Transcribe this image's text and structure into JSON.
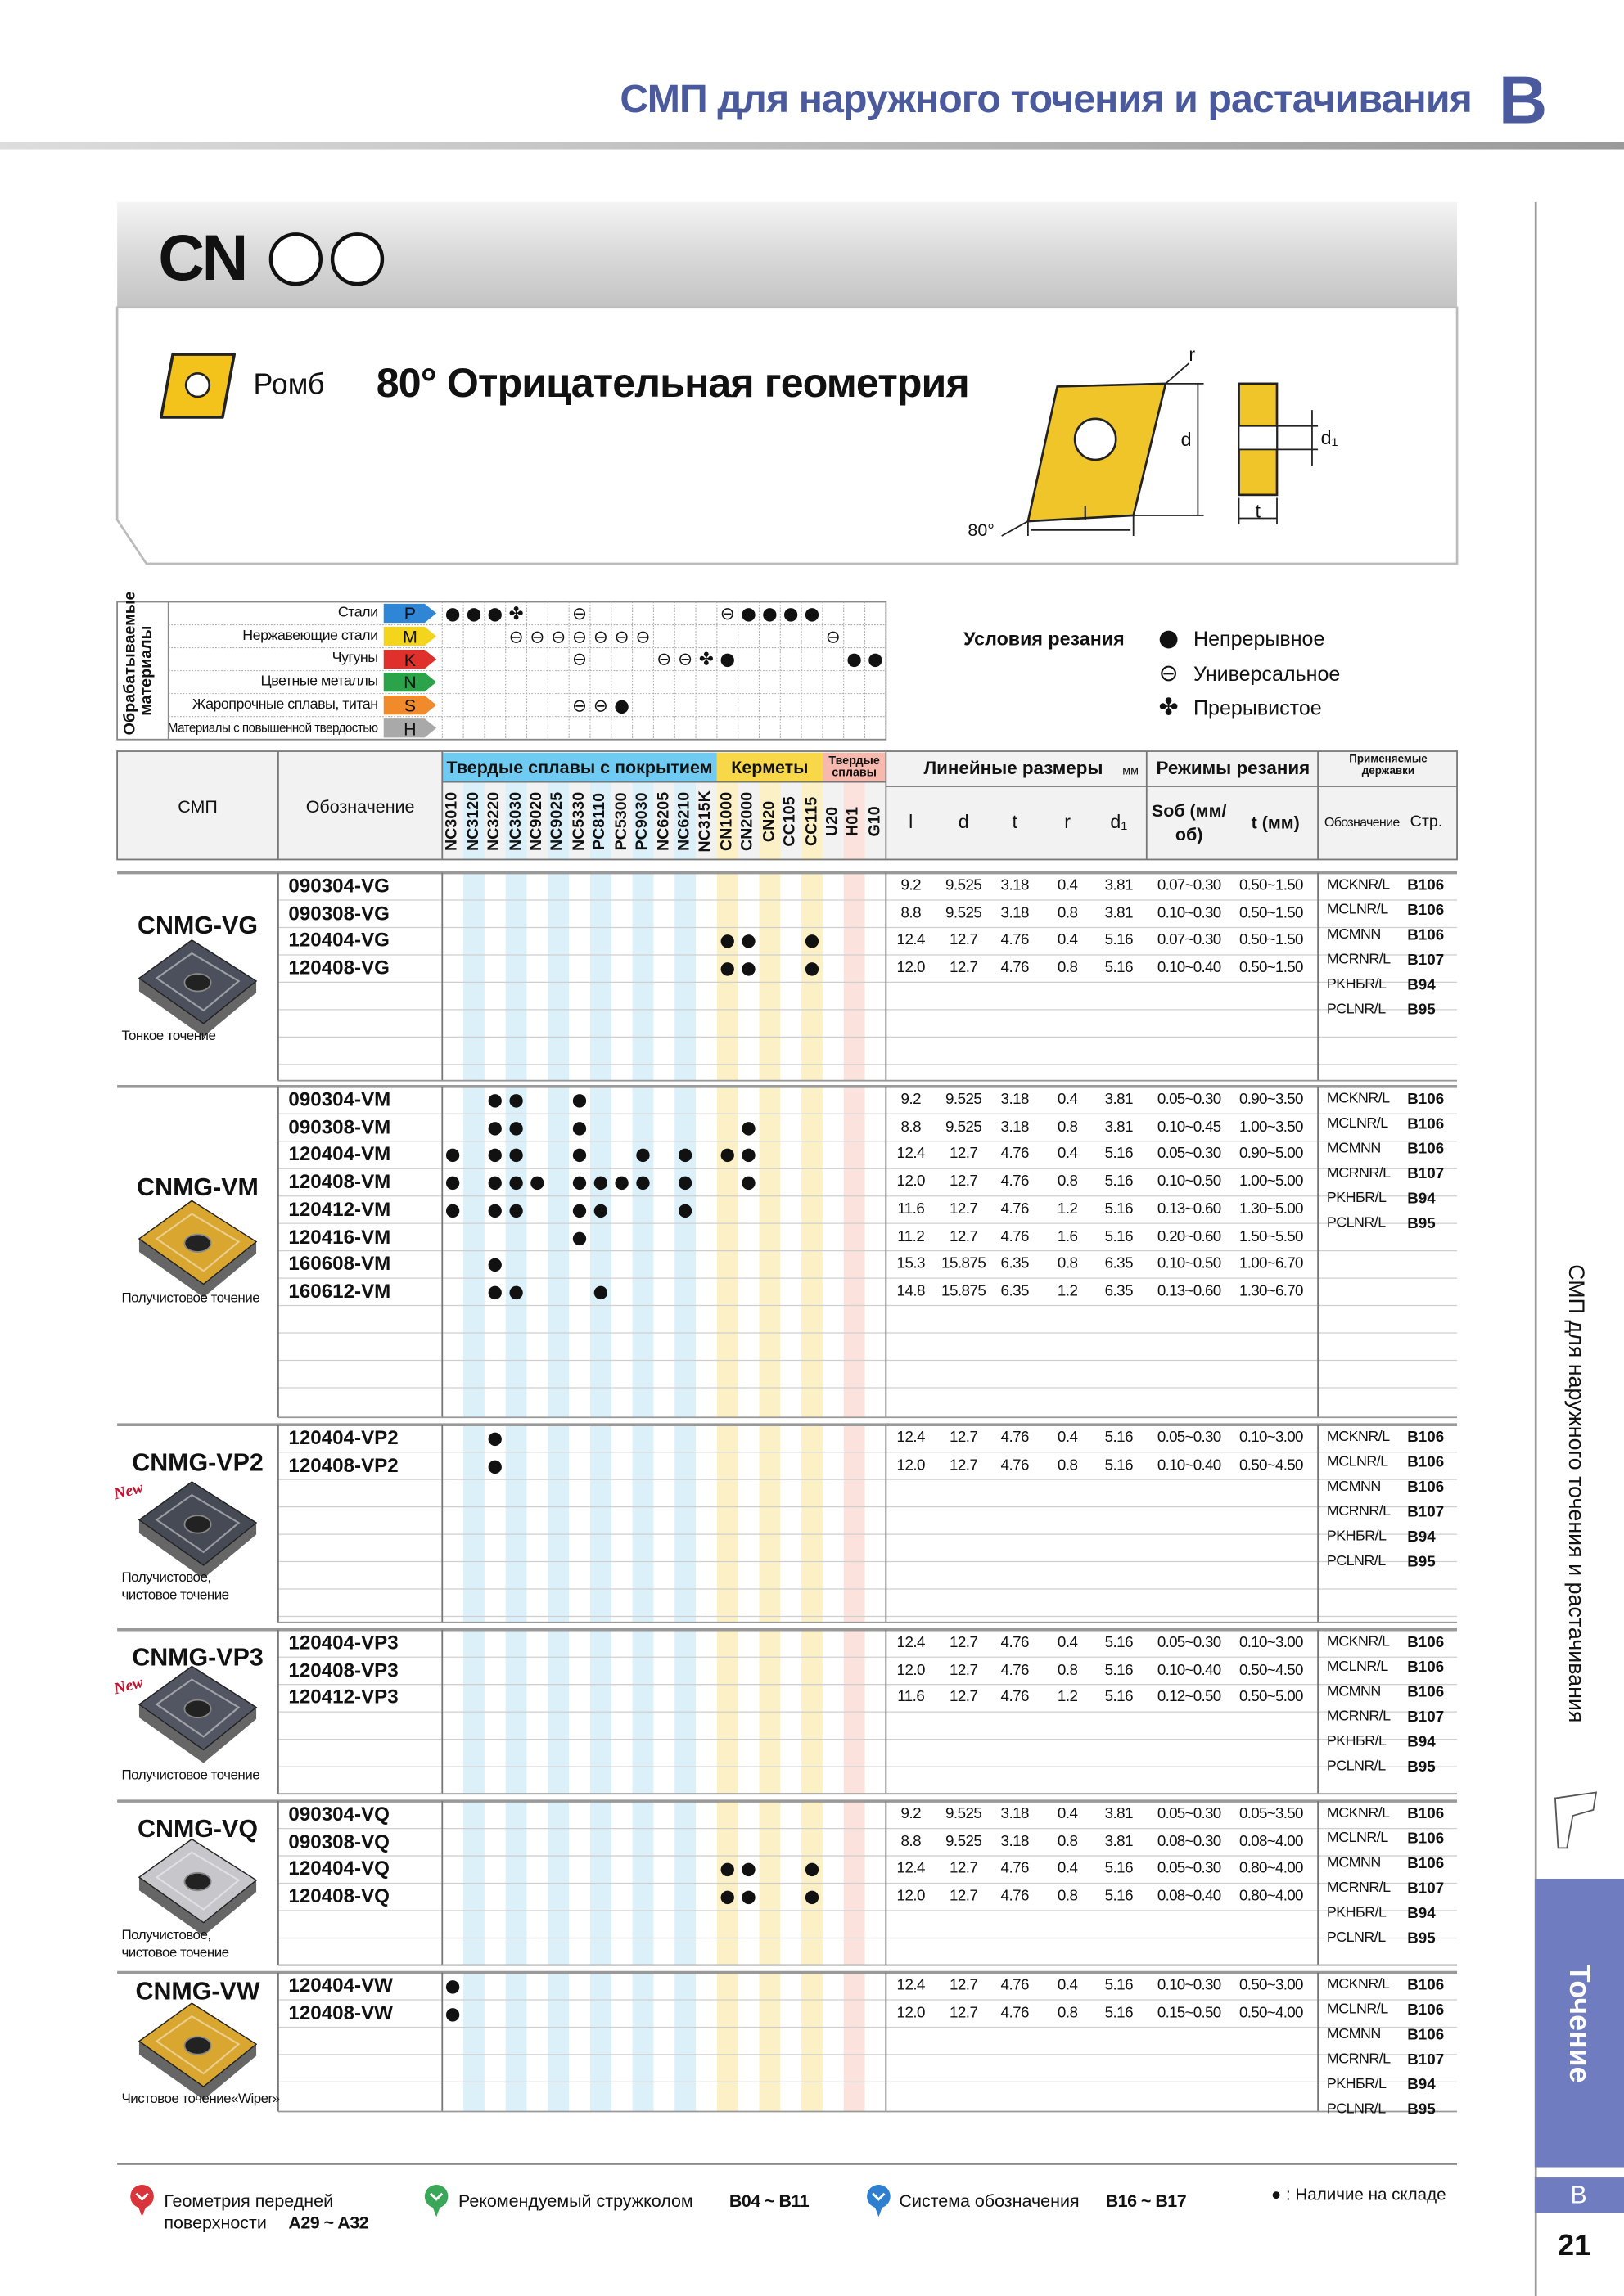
{
  "header": {
    "title": "СМП для наружного точения и растачивания",
    "letter": "B"
  },
  "series": {
    "code": "CN",
    "shape": "Ромб",
    "geometry": "80° Отрицательная геометрия"
  },
  "diagram": {
    "r": "r",
    "d": "d",
    "d1": "d₁",
    "l": "l",
    "t": "t",
    "angle": "80°"
  },
  "materials": {
    "title": "Обрабатываемые материалы",
    "rows": [
      {
        "name": "Стали",
        "letter": "P",
        "color": "#2f86d6",
        "marks": {
          "NC3010": "●",
          "NC3120": "●",
          "NC3220": "●",
          "NC3030": "✤",
          "NC5330": "⊖",
          "CN1000": "⊖",
          "CN2000": "●",
          "CN20": "●",
          "CC105": "●",
          "CC115": "●"
        }
      },
      {
        "name": "Нержавеющие стали",
        "letter": "M",
        "color": "#f2d51c",
        "marks": {
          "NC3030": "⊖",
          "NC9020": "⊖",
          "NC9025": "⊖",
          "NC5330": "⊖",
          "PC8110": "⊖",
          "PC5300": "⊖",
          "PC9030": "⊖",
          "U20": "⊖"
        }
      },
      {
        "name": "Чугуны",
        "letter": "K",
        "color": "#e0302c",
        "marks": {
          "NC5330": "⊖",
          "NC6205": "⊖",
          "NC6210": "⊖",
          "NC315K": "✤",
          "CN1000": "●",
          "H01": "●",
          "G10": "●"
        }
      },
      {
        "name": "Цветные металлы",
        "letter": "N",
        "color": "#2ba34a"
      },
      {
        "name": "Жаропрочные сплавы, титан",
        "letter": "S",
        "color": "#f08a2a",
        "marks": {
          "NC5330": "⊖",
          "PC8110": "⊖",
          "PC5300": "●"
        }
      },
      {
        "name": "Материалы с повышенной твердостью",
        "letter": "H",
        "color": "#a9a9a9"
      }
    ]
  },
  "conditions": {
    "title": "Условия резания",
    "items": [
      {
        "symbol": "●",
        "label": "Непрерывное"
      },
      {
        "symbol": "⊖",
        "label": "Универсальное"
      },
      {
        "symbol": "✤",
        "label": "Прерывистое"
      }
    ]
  },
  "table": {
    "insert_header": "СМП",
    "code_header": "Обозначение",
    "grade_groups": [
      {
        "name": "Твердые сплавы с покрытием",
        "color": "#6fcbf1",
        "stripe_color": "#dcf0fa",
        "grades": [
          "NC3010",
          "NC3120",
          "NC3220",
          "NC3030",
          "NC9020",
          "NC9025",
          "NC5330",
          "PC8110",
          "PC5300",
          "PC9030",
          "NC6205",
          "NC6210",
          "NC315K"
        ]
      },
      {
        "name": "Керметы",
        "color": "#f8d848",
        "stripe_color": "#fcf1c6",
        "grades": [
          "CN1000",
          "CN2000",
          "CN20",
          "CC105",
          "CC115"
        ]
      },
      {
        "name": "Твердые сплавы",
        "color": "#f7b9ad",
        "stripe_color": "#fbe2dc",
        "grades": [
          "U20",
          "H01",
          "G10"
        ]
      }
    ],
    "dims_header": "Линейные размеры",
    "dims_unit": "мм",
    "dims": [
      "l",
      "d",
      "t",
      "r",
      "d₁"
    ],
    "cutting_header": "Режимы резания",
    "feed_header": "Sоб (мм/об)",
    "depth_header": "t (мм)",
    "holders_header": "Применяемые державки",
    "holder_name_header": "Обозначение",
    "holder_page_header": "Стр."
  },
  "groups": [
    {
      "name": "CNMG-VG",
      "description": [
        "Тонкое точение"
      ],
      "rows": [
        {
          "code": "090304-VG",
          "dims": [
            "9.2",
            "9.525",
            "3.18",
            "0.4",
            "3.81"
          ],
          "feed": "0.07~0.30",
          "depth": "0.50~1.50"
        },
        {
          "code": "090308-VG",
          "dims": [
            "8.8",
            "9.525",
            "3.18",
            "0.8",
            "3.81"
          ],
          "feed": "0.10~0.30",
          "depth": "0.50~1.50"
        },
        {
          "code": "120404-VG",
          "marks": {
            "CN1000": "●",
            "CN2000": "●",
            "CC115": "●"
          },
          "dims": [
            "12.4",
            "12.7",
            "4.76",
            "0.4",
            "5.16"
          ],
          "feed": "0.07~0.30",
          "depth": "0.50~1.50"
        },
        {
          "code": "120408-VG",
          "marks": {
            "CN1000": "●",
            "CN2000": "●",
            "CC115": "●"
          },
          "dims": [
            "12.0",
            "12.7",
            "4.76",
            "0.8",
            "5.16"
          ],
          "feed": "0.10~0.40",
          "depth": "0.50~1.50"
        }
      ],
      "holders": [
        [
          "MCKNR/L",
          "B106"
        ],
        [
          "MCLNR/L",
          "B106"
        ],
        [
          "MCMNN",
          "B106"
        ],
        [
          "MCRNR/L",
          "B107"
        ],
        [
          "PKHБR/L",
          "B94"
        ],
        [
          "PCLNR/L",
          "B95"
        ]
      ]
    },
    {
      "name": "CNMG-VM",
      "description": [
        "Получистовое точение"
      ],
      "rows": [
        {
          "code": "090304-VM",
          "marks": {
            "NC3220": "●",
            "NC3030": "●",
            "NC5330": "●"
          },
          "dims": [
            "9.2",
            "9.525",
            "3.18",
            "0.4",
            "3.81"
          ],
          "feed": "0.05~0.30",
          "depth": "0.90~3.50"
        },
        {
          "code": "090308-VM",
          "marks": {
            "NC3220": "●",
            "NC3030": "●",
            "NC5330": "●",
            "CN2000": "●"
          },
          "dims": [
            "8.8",
            "9.525",
            "3.18",
            "0.8",
            "3.81"
          ],
          "feed": "0.10~0.45",
          "depth": "1.00~3.50"
        },
        {
          "code": "120404-VM",
          "marks": {
            "NC3010": "●",
            "NC3220": "●",
            "NC3030": "●",
            "NC5330": "●",
            "PC9030": "●",
            "NC6210": "●",
            "CN1000": "●",
            "CN2000": "●"
          },
          "dims": [
            "12.4",
            "12.7",
            "4.76",
            "0.4",
            "5.16"
          ],
          "feed": "0.05~0.30",
          "depth": "0.90~5.00"
        },
        {
          "code": "120408-VM",
          "marks": {
            "NC3010": "●",
            "NC3220": "●",
            "NC3030": "●",
            "NC9020": "●",
            "NC5330": "●",
            "PC8110": "●",
            "PC5300": "●",
            "PC9030": "●",
            "NC6210": "●",
            "CN2000": "●"
          },
          "dims": [
            "12.0",
            "12.7",
            "4.76",
            "0.8",
            "5.16"
          ],
          "feed": "0.10~0.50",
          "depth": "1.00~5.00"
        },
        {
          "code": "120412-VM",
          "marks": {
            "NC3010": "●",
            "NC3220": "●",
            "NC3030": "●",
            "NC5330": "●",
            "PC8110": "●",
            "NC6210": "●"
          },
          "dims": [
            "11.6",
            "12.7",
            "4.76",
            "1.2",
            "5.16"
          ],
          "feed": "0.13~0.60",
          "depth": "1.30~5.00"
        },
        {
          "code": "120416-VM",
          "marks": {
            "NC5330": "●"
          },
          "dims": [
            "11.2",
            "12.7",
            "4.76",
            "1.6",
            "5.16"
          ],
          "feed": "0.20~0.60",
          "depth": "1.50~5.50"
        },
        {
          "code": "160608-VM",
          "marks": {
            "NC3220": "●"
          },
          "dims": [
            "15.3",
            "15.875",
            "6.35",
            "0.8",
            "6.35"
          ],
          "feed": "0.10~0.50",
          "depth": "1.00~6.70"
        },
        {
          "code": "160612-VM",
          "marks": {
            "NC3220": "●",
            "NC3030": "●",
            "PC8110": "●"
          },
          "dims": [
            "14.8",
            "15.875",
            "6.35",
            "1.2",
            "6.35"
          ],
          "feed": "0.13~0.60",
          "depth": "1.30~6.70"
        }
      ],
      "holders": [
        [
          "MCKNR/L",
          "B106"
        ],
        [
          "MCLNR/L",
          "B106"
        ],
        [
          "MCMNN",
          "B106"
        ],
        [
          "MCRNR/L",
          "B107"
        ],
        [
          "PKHБR/L",
          "B94"
        ],
        [
          "PCLNR/L",
          "B95"
        ]
      ]
    },
    {
      "name": "CNMG-VP2",
      "badge": "New",
      "description": [
        "Получистовое,",
        "чистовое точение"
      ],
      "rows": [
        {
          "code": "120404-VP2",
          "marks": {
            "NC3220": "●"
          },
          "dims": [
            "12.4",
            "12.7",
            "4.76",
            "0.4",
            "5.16"
          ],
          "feed": "0.05~0.30",
          "depth": "0.10~3.00"
        },
        {
          "code": "120408-VP2",
          "marks": {
            "NC3220": "●"
          },
          "dims": [
            "12.0",
            "12.7",
            "4.76",
            "0.8",
            "5.16"
          ],
          "feed": "0.10~0.40",
          "depth": "0.50~4.50"
        }
      ],
      "holders": [
        [
          "MCKNR/L",
          "B106"
        ],
        [
          "MCLNR/L",
          "B106"
        ],
        [
          "MCMNN",
          "B106"
        ],
        [
          "MCRNR/L",
          "B107"
        ],
        [
          "PKHБR/L",
          "B94"
        ],
        [
          "PCLNR/L",
          "B95"
        ]
      ]
    },
    {
      "name": "CNMG-VP3",
      "badge": "New",
      "description": [
        "Получистовое точение"
      ],
      "rows": [
        {
          "code": "120404-VP3",
          "dims": [
            "12.4",
            "12.7",
            "4.76",
            "0.4",
            "5.16"
          ],
          "feed": "0.05~0.30",
          "depth": "0.10~3.00"
        },
        {
          "code": "120408-VP3",
          "dims": [
            "12.0",
            "12.7",
            "4.76",
            "0.8",
            "5.16"
          ],
          "feed": "0.10~0.40",
          "depth": "0.50~4.50"
        },
        {
          "code": "120412-VP3",
          "dims": [
            "11.6",
            "12.7",
            "4.76",
            "1.2",
            "5.16"
          ],
          "feed": "0.12~0.50",
          "depth": "0.50~5.00"
        }
      ],
      "holders": [
        [
          "MCKNR/L",
          "B106"
        ],
        [
          "MCLNR/L",
          "B106"
        ],
        [
          "MCMNN",
          "B106"
        ],
        [
          "MCRNR/L",
          "B107"
        ],
        [
          "PKHБR/L",
          "B94"
        ],
        [
          "PCLNR/L",
          "B95"
        ]
      ]
    },
    {
      "name": "CNMG-VQ",
      "description": [
        "Получистовое,",
        "чистовое точение"
      ],
      "rows": [
        {
          "code": "090304-VQ",
          "dims": [
            "9.2",
            "9.525",
            "3.18",
            "0.4",
            "3.81"
          ],
          "feed": "0.05~0.30",
          "depth": "0.05~3.50"
        },
        {
          "code": "090308-VQ",
          "dims": [
            "8.8",
            "9.525",
            "3.18",
            "0.8",
            "3.81"
          ],
          "feed": "0.08~0.30",
          "depth": "0.08~4.00"
        },
        {
          "code": "120404-VQ",
          "marks": {
            "CN1000": "●",
            "CN2000": "●",
            "CC115": "●"
          },
          "dims": [
            "12.4",
            "12.7",
            "4.76",
            "0.4",
            "5.16"
          ],
          "feed": "0.05~0.30",
          "depth": "0.80~4.00"
        },
        {
          "code": "120408-VQ",
          "marks": {
            "CN1000": "●",
            "CN2000": "●",
            "CC115": "●"
          },
          "dims": [
            "12.0",
            "12.7",
            "4.76",
            "0.8",
            "5.16"
          ],
          "feed": "0.08~0.40",
          "depth": "0.80~4.00"
        }
      ],
      "holders": [
        [
          "MCKNR/L",
          "B106"
        ],
        [
          "MCLNR/L",
          "B106"
        ],
        [
          "MCMNN",
          "B106"
        ],
        [
          "MCRNR/L",
          "B107"
        ],
        [
          "PKHБR/L",
          "B94"
        ],
        [
          "PCLNR/L",
          "B95"
        ]
      ]
    },
    {
      "name": "CNMG-VW",
      "description": [
        "Чистовое точение«Wiper»"
      ],
      "rows": [
        {
          "code": "120404-VW",
          "marks": {
            "NC3010": "●"
          },
          "dims": [
            "12.4",
            "12.7",
            "4.76",
            "0.4",
            "5.16"
          ],
          "feed": "0.10~0.30",
          "depth": "0.50~3.00"
        },
        {
          "code": "120408-VW",
          "marks": {
            "NC3010": "●"
          },
          "dims": [
            "12.0",
            "12.7",
            "4.76",
            "0.8",
            "5.16"
          ],
          "feed": "0.15~0.50",
          "depth": "0.50~4.00"
        }
      ],
      "holders": [
        [
          "MCKNR/L",
          "B106"
        ],
        [
          "MCLNR/L",
          "B106"
        ],
        [
          "MCMNN",
          "B106"
        ],
        [
          "MCRNR/L",
          "B107"
        ],
        [
          "PKHБR/L",
          "B94"
        ],
        [
          "PCLNR/L",
          "B95"
        ]
      ]
    }
  ],
  "footer": {
    "links": [
      {
        "text": [
          "Геометрия передней",
          "поверхности"
        ],
        "ref": "A29 ~ A32",
        "color": "#d8343a"
      },
      {
        "text": [
          "Рекомендуемый стружколом"
        ],
        "ref": "B04 ~ B11",
        "color": "#3aa657"
      },
      {
        "text": [
          "Система обозначения"
        ],
        "ref": "B16 ~ B17",
        "color": "#2f7fd0"
      }
    ],
    "stock_note": "● : Наличие на складе"
  },
  "sidebar": {
    "text": "СМП для наружного точения и растачивания",
    "section": "Точение",
    "letter": "B",
    "page": "21"
  }
}
